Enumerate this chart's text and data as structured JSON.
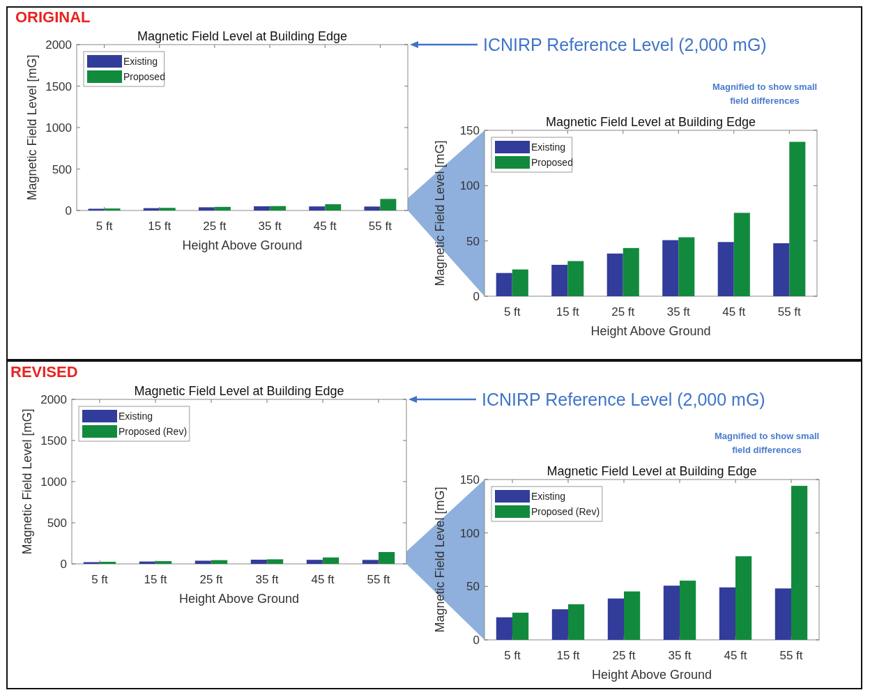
{
  "chart_data": [
    {
      "type": "bar",
      "title": "Magnetic Field Level at Building Edge",
      "xlabel": "Height Above Ground",
      "ylabel": "Magnetic Field Level [mG]",
      "categories": [
        "5 ft",
        "15 ft",
        "25 ft",
        "35 ft",
        "45 ft",
        "55 ft"
      ],
      "series": [
        {
          "name": "Existing",
          "color": "#323c9a",
          "values": [
            21,
            28.4,
            38.6,
            50.7,
            49,
            47.9
          ]
        },
        {
          "name": "Proposed",
          "color": "#128a3d",
          "values": [
            24.2,
            31.8,
            43.6,
            53.3,
            75.4,
            139.6
          ]
        }
      ],
      "ylim": [
        0,
        2000
      ],
      "yticks": [
        0,
        500,
        1000,
        1500,
        2000
      ],
      "grid": false,
      "legend": "top left",
      "annotations": [
        "ORIGINAL",
        "ICNIRP Reference Level (2,000 mG)"
      ]
    },
    {
      "type": "bar",
      "title": "Magnetic Field Level at Building Edge",
      "xlabel": "Height Above Ground",
      "ylabel": "Magnetic Field Level [mG]",
      "categories": [
        "5 ft",
        "15 ft",
        "25 ft",
        "35 ft",
        "45 ft",
        "55 ft"
      ],
      "series": [
        {
          "name": "Existing",
          "color": "#323c9a",
          "values": [
            21,
            28.4,
            38.6,
            50.7,
            49,
            47.9
          ]
        },
        {
          "name": "Proposed",
          "color": "#128a3d",
          "values": [
            24.2,
            31.8,
            43.6,
            53.3,
            75.4,
            139.6
          ]
        }
      ],
      "ylim": [
        0,
        150
      ],
      "yticks": [
        0,
        50,
        100,
        150
      ],
      "grid": false,
      "legend": "top left",
      "annotations": [
        "Magnified to show small field differences"
      ]
    },
    {
      "type": "bar",
      "title": "Magnetic Field Level at Building Edge",
      "xlabel": "Height Above Ground",
      "ylabel": "Magnetic Field Level [mG]",
      "categories": [
        "5 ft",
        "15 ft",
        "25 ft",
        "35 ft",
        "45 ft",
        "55 ft"
      ],
      "series": [
        {
          "name": "Existing",
          "color": "#323c9a",
          "values": [
            21.1,
            28.6,
            38.7,
            50.7,
            49.1,
            48.1
          ]
        },
        {
          "name": "Proposed (Rev)",
          "color": "#128a3d",
          "values": [
            25.4,
            33.3,
            45.3,
            55.4,
            78.2,
            144.1
          ]
        }
      ],
      "ylim": [
        0,
        2000
      ],
      "yticks": [
        0,
        500,
        1000,
        1500,
        2000
      ],
      "grid": false,
      "legend": "top left",
      "annotations": [
        "REVISED",
        "ICNIRP Reference Level (2,000 mG)"
      ]
    },
    {
      "type": "bar",
      "title": "Magnetic Field Level at Building Edge",
      "xlabel": "Height Above Ground",
      "ylabel": "Magnetic Field Level [mG]",
      "categories": [
        "5 ft",
        "15 ft",
        "25 ft",
        "35 ft",
        "45 ft",
        "55 ft"
      ],
      "series": [
        {
          "name": "Existing",
          "color": "#323c9a",
          "values": [
            21.1,
            28.6,
            38.7,
            50.7,
            49.1,
            48.1
          ]
        },
        {
          "name": "Proposed (Rev)",
          "color": "#128a3d",
          "values": [
            25.4,
            33.3,
            45.3,
            55.4,
            78.2,
            144.1
          ]
        }
      ],
      "ylim": [
        0,
        150
      ],
      "yticks": [
        0,
        50,
        100,
        150
      ],
      "grid": false,
      "legend": "top left",
      "annotations": [
        "Magnified to show small field differences"
      ]
    }
  ]
}
